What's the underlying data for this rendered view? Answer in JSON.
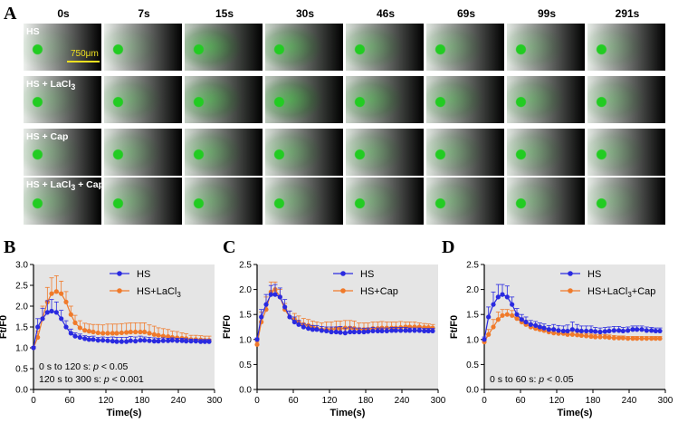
{
  "panels": {
    "A": "A",
    "B": "B",
    "C": "C",
    "D": "D"
  },
  "time_labels": [
    "0s",
    "7s",
    "15s",
    "30s",
    "46s",
    "69s",
    "99s",
    "291s"
  ],
  "row_labels": [
    {
      "main": "HS",
      "sub": "",
      "tail": ""
    },
    {
      "main": "HS + LaCl",
      "sub": "3",
      "tail": ""
    },
    {
      "main": "HS + Cap",
      "sub": "",
      "tail": ""
    },
    {
      "main": "HS + LaCl",
      "sub": "3",
      "tail": " + Cap"
    }
  ],
  "scale_bar": "750μm",
  "colors": {
    "blue": "#2a2ae0",
    "orange": "#f07a2a",
    "plot_bg": "#e5e5e5",
    "fluor": "#22cc22"
  },
  "chart_data": [
    {
      "type": "line",
      "xlabel": "Time(s)",
      "ylabel": "Ft/F0",
      "xlim": [
        0,
        300
      ],
      "ylim": [
        0,
        3
      ],
      "xticks": [
        0,
        60,
        120,
        180,
        240,
        300
      ],
      "yticks": [
        "0.0",
        "0.5",
        "1.0",
        "1.5",
        "2.0",
        "2.5",
        "3.0"
      ],
      "legend": [
        {
          "main": "HS",
          "sub": ""
        },
        {
          "main": "HS+LaCl",
          "sub": "3"
        }
      ],
      "annotations": [
        {
          "pre": "0 s to 120 s: ",
          "it": "p",
          "post": " < 0.05"
        },
        {
          "pre": "120 s to 300 s: ",
          "it": "p",
          "post": " < 0.001"
        }
      ],
      "series": [
        {
          "name": "HS",
          "color": "blue",
          "x": [
            0,
            7,
            15,
            23,
            30,
            38,
            46,
            54,
            62,
            69,
            77,
            85,
            92,
            99,
            107,
            115,
            123,
            131,
            138,
            146,
            154,
            161,
            169,
            177,
            184,
            192,
            200,
            207,
            215,
            223,
            230,
            238,
            246,
            253,
            261,
            269,
            277,
            284,
            291
          ],
          "y": [
            1.0,
            1.5,
            1.7,
            1.85,
            1.88,
            1.85,
            1.7,
            1.5,
            1.35,
            1.28,
            1.25,
            1.22,
            1.2,
            1.2,
            1.18,
            1.18,
            1.17,
            1.16,
            1.15,
            1.15,
            1.15,
            1.17,
            1.16,
            1.18,
            1.18,
            1.17,
            1.16,
            1.16,
            1.17,
            1.17,
            1.18,
            1.17,
            1.17,
            1.16,
            1.16,
            1.16,
            1.15,
            1.15,
            1.15
          ],
          "err": [
            0.03,
            0.2,
            0.25,
            0.28,
            0.28,
            0.25,
            0.2,
            0.15,
            0.1,
            0.08,
            0.08,
            0.07,
            0.07,
            0.08,
            0.07,
            0.08,
            0.08,
            0.1,
            0.1,
            0.1,
            0.1,
            0.1,
            0.1,
            0.1,
            0.08,
            0.08,
            0.08,
            0.07,
            0.07,
            0.06,
            0.06,
            0.06,
            0.06,
            0.06,
            0.05,
            0.05,
            0.05,
            0.05,
            0.05
          ]
        },
        {
          "name": "HS+LaCl3",
          "color": "orange",
          "x": [
            0,
            7,
            15,
            23,
            30,
            38,
            46,
            54,
            62,
            69,
            77,
            85,
            92,
            99,
            107,
            115,
            123,
            131,
            138,
            146,
            154,
            161,
            169,
            177,
            184,
            192,
            200,
            207,
            215,
            223,
            230,
            238,
            246,
            253,
            261,
            269,
            277,
            284,
            291
          ],
          "y": [
            1.0,
            1.25,
            1.7,
            2.1,
            2.3,
            2.35,
            2.3,
            2.1,
            1.8,
            1.6,
            1.48,
            1.42,
            1.4,
            1.38,
            1.36,
            1.35,
            1.35,
            1.35,
            1.35,
            1.36,
            1.37,
            1.38,
            1.38,
            1.38,
            1.38,
            1.35,
            1.32,
            1.3,
            1.28,
            1.27,
            1.25,
            1.24,
            1.23,
            1.22,
            1.2,
            1.2,
            1.19,
            1.18,
            1.18
          ],
          "err": [
            0.03,
            0.15,
            0.3,
            0.35,
            0.38,
            0.38,
            0.3,
            0.25,
            0.2,
            0.18,
            0.17,
            0.17,
            0.17,
            0.18,
            0.2,
            0.2,
            0.22,
            0.22,
            0.22,
            0.22,
            0.22,
            0.22,
            0.22,
            0.22,
            0.22,
            0.2,
            0.2,
            0.18,
            0.18,
            0.17,
            0.15,
            0.15,
            0.13,
            0.12,
            0.1,
            0.1,
            0.1,
            0.1,
            0.1
          ]
        }
      ]
    },
    {
      "type": "line",
      "xlabel": "Time(s)",
      "ylabel": "Ft/F0",
      "xlim": [
        0,
        300
      ],
      "ylim": [
        0,
        2.5
      ],
      "xticks": [
        0,
        60,
        120,
        180,
        240,
        300
      ],
      "yticks": [
        "0.0",
        "0.5",
        "1.0",
        "1.5",
        "2.0",
        "2.5"
      ],
      "legend": [
        {
          "main": "HS",
          "sub": ""
        },
        {
          "main": "HS+Cap",
          "sub": ""
        }
      ],
      "annotations": [],
      "series": [
        {
          "name": "HS",
          "color": "blue",
          "x": [
            0,
            7,
            15,
            23,
            30,
            38,
            46,
            54,
            62,
            69,
            77,
            85,
            92,
            99,
            107,
            115,
            123,
            131,
            138,
            146,
            154,
            161,
            169,
            177,
            184,
            192,
            200,
            207,
            215,
            223,
            230,
            238,
            246,
            253,
            261,
            269,
            277,
            284,
            291
          ],
          "y": [
            1.0,
            1.45,
            1.7,
            1.9,
            1.9,
            1.85,
            1.65,
            1.45,
            1.35,
            1.3,
            1.25,
            1.22,
            1.2,
            1.2,
            1.18,
            1.17,
            1.15,
            1.15,
            1.14,
            1.13,
            1.15,
            1.15,
            1.15,
            1.15,
            1.16,
            1.17,
            1.17,
            1.17,
            1.17,
            1.18,
            1.18,
            1.18,
            1.18,
            1.18,
            1.18,
            1.18,
            1.17,
            1.17,
            1.17
          ],
          "err": [
            0.03,
            0.15,
            0.2,
            0.18,
            0.2,
            0.18,
            0.15,
            0.12,
            0.1,
            0.08,
            0.07,
            0.07,
            0.08,
            0.08,
            0.08,
            0.08,
            0.1,
            0.1,
            0.12,
            0.1,
            0.1,
            0.08,
            0.08,
            0.07,
            0.07,
            0.07,
            0.06,
            0.06,
            0.06,
            0.06,
            0.06,
            0.06,
            0.06,
            0.05,
            0.05,
            0.05,
            0.05,
            0.05,
            0.05
          ]
        },
        {
          "name": "HS+Cap",
          "color": "orange",
          "x": [
            0,
            7,
            15,
            23,
            30,
            38,
            46,
            54,
            62,
            69,
            77,
            85,
            92,
            99,
            107,
            115,
            123,
            131,
            138,
            146,
            154,
            161,
            169,
            177,
            184,
            192,
            200,
            207,
            215,
            223,
            230,
            238,
            246,
            253,
            261,
            269,
            277,
            284,
            291
          ],
          "y": [
            0.9,
            1.35,
            1.6,
            1.95,
            2.0,
            1.85,
            1.6,
            1.45,
            1.4,
            1.35,
            1.3,
            1.28,
            1.25,
            1.22,
            1.2,
            1.2,
            1.2,
            1.22,
            1.22,
            1.23,
            1.23,
            1.22,
            1.2,
            1.2,
            1.2,
            1.22,
            1.22,
            1.23,
            1.23,
            1.23,
            1.23,
            1.24,
            1.25,
            1.25,
            1.25,
            1.25,
            1.24,
            1.24,
            1.23
          ],
          "err": [
            0.05,
            0.2,
            0.25,
            0.2,
            0.15,
            0.15,
            0.12,
            0.12,
            0.12,
            0.12,
            0.12,
            0.12,
            0.12,
            0.13,
            0.13,
            0.15,
            0.15,
            0.15,
            0.15,
            0.15,
            0.15,
            0.15,
            0.13,
            0.13,
            0.13,
            0.13,
            0.13,
            0.13,
            0.12,
            0.12,
            0.12,
            0.12,
            0.1,
            0.1,
            0.1,
            0.08,
            0.08,
            0.07,
            0.07
          ]
        }
      ]
    },
    {
      "type": "line",
      "xlabel": "Time(s)",
      "ylabel": "Ft/F0",
      "xlim": [
        0,
        300
      ],
      "ylim": [
        0,
        2.5
      ],
      "xticks": [
        0,
        60,
        120,
        180,
        240,
        300
      ],
      "yticks": [
        "0.0",
        "0.5",
        "1.0",
        "1.5",
        "2.0",
        "2.5"
      ],
      "legend": [
        {
          "main": "HS",
          "sub": ""
        },
        {
          "main": "HS+LaCl",
          "sub": "3",
          "tail": "+Cap"
        }
      ],
      "annotations": [
        {
          "pre": "0 s to 60 s: ",
          "it": "p",
          "post": " < 0.05"
        }
      ],
      "series": [
        {
          "name": "HS",
          "color": "blue",
          "x": [
            0,
            7,
            15,
            23,
            30,
            38,
            46,
            54,
            62,
            69,
            77,
            85,
            92,
            99,
            107,
            115,
            123,
            131,
            138,
            146,
            154,
            161,
            169,
            177,
            184,
            192,
            200,
            207,
            215,
            223,
            230,
            238,
            246,
            253,
            261,
            269,
            277,
            284,
            291
          ],
          "y": [
            1.0,
            1.45,
            1.7,
            1.85,
            1.9,
            1.85,
            1.7,
            1.5,
            1.4,
            1.35,
            1.3,
            1.28,
            1.25,
            1.23,
            1.2,
            1.2,
            1.18,
            1.17,
            1.17,
            1.2,
            1.18,
            1.17,
            1.17,
            1.17,
            1.16,
            1.15,
            1.16,
            1.17,
            1.18,
            1.18,
            1.17,
            1.18,
            1.2,
            1.2,
            1.2,
            1.18,
            1.18,
            1.17,
            1.17
          ],
          "err": [
            0.05,
            0.2,
            0.25,
            0.25,
            0.2,
            0.22,
            0.15,
            0.12,
            0.1,
            0.1,
            0.08,
            0.08,
            0.08,
            0.08,
            0.08,
            0.1,
            0.1,
            0.1,
            0.12,
            0.15,
            0.12,
            0.1,
            0.1,
            0.1,
            0.08,
            0.08,
            0.08,
            0.08,
            0.08,
            0.08,
            0.07,
            0.07,
            0.07,
            0.07,
            0.07,
            0.07,
            0.06,
            0.06,
            0.06
          ]
        },
        {
          "name": "HS+LaCl3+Cap",
          "color": "orange",
          "x": [
            0,
            7,
            15,
            23,
            30,
            38,
            46,
            54,
            62,
            69,
            77,
            85,
            92,
            99,
            107,
            115,
            123,
            131,
            138,
            146,
            154,
            161,
            169,
            177,
            184,
            192,
            200,
            207,
            215,
            223,
            230,
            238,
            246,
            253,
            261,
            269,
            277,
            284,
            291
          ],
          "y": [
            0.95,
            1.1,
            1.25,
            1.4,
            1.48,
            1.5,
            1.48,
            1.42,
            1.35,
            1.3,
            1.25,
            1.22,
            1.2,
            1.18,
            1.15,
            1.13,
            1.12,
            1.12,
            1.1,
            1.1,
            1.09,
            1.08,
            1.07,
            1.06,
            1.05,
            1.05,
            1.05,
            1.04,
            1.03,
            1.03,
            1.03,
            1.02,
            1.02,
            1.02,
            1.02,
            1.02,
            1.02,
            1.02,
            1.02
          ],
          "err": [
            0.03,
            0.1,
            0.15,
            0.15,
            0.12,
            0.1,
            0.1,
            0.1,
            0.08,
            0.08,
            0.07,
            0.07,
            0.07,
            0.07,
            0.07,
            0.07,
            0.06,
            0.06,
            0.06,
            0.06,
            0.06,
            0.06,
            0.05,
            0.05,
            0.05,
            0.05,
            0.05,
            0.05,
            0.05,
            0.04,
            0.04,
            0.04,
            0.04,
            0.04,
            0.04,
            0.04,
            0.04,
            0.04,
            0.04
          ]
        }
      ]
    }
  ]
}
